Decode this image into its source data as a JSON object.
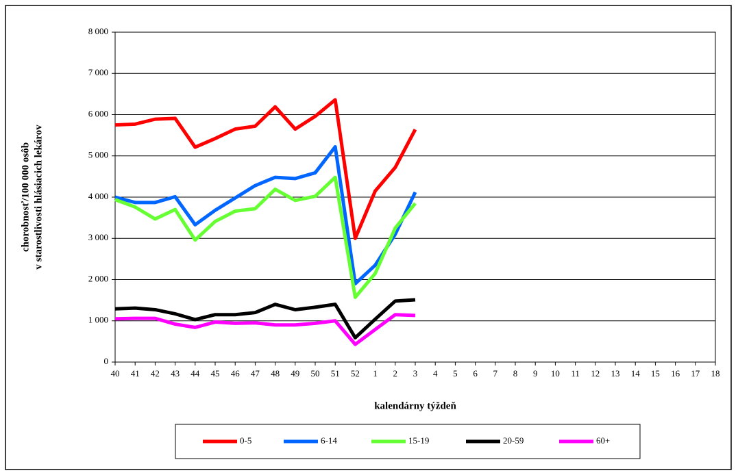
{
  "chart_data": {
    "type": "line",
    "xlabel": "kalendárny týždeň",
    "ylabel": [
      "chorobnosť/100 000 osôb",
      "v starostlivosti hlásiacich lekárov"
    ],
    "categories": [
      "40",
      "41",
      "42",
      "43",
      "44",
      "45",
      "46",
      "47",
      "48",
      "49",
      "50",
      "51",
      "52",
      "1",
      "2",
      "3",
      "4",
      "5",
      "6",
      "7",
      "8",
      "9",
      "10",
      "11",
      "12",
      "13",
      "14",
      "15",
      "16",
      "17",
      "18"
    ],
    "ylim": [
      0,
      8000
    ],
    "yticks": [
      0,
      {
        "value": 1000,
        "label": "1 000"
      },
      {
        "value": 2000,
        "label": "2 000"
      },
      {
        "value": 3000,
        "label": "3 000"
      },
      {
        "value": 4000,
        "label": "4 000"
      },
      {
        "value": 5000,
        "label": "5 000"
      },
      {
        "value": 6000,
        "label": "6 000"
      },
      {
        "value": 7000,
        "label": "7 000"
      },
      {
        "value": 8000,
        "label": "8 000"
      }
    ],
    "grid": true,
    "legend": "bottom",
    "series": [
      {
        "name": "0-5",
        "color": "#ff0000",
        "values": [
          5750,
          5770,
          5890,
          5910,
          5210,
          5420,
          5650,
          5720,
          6190,
          5650,
          5960,
          6360,
          3000,
          4150,
          4720,
          5640,
          null,
          null,
          null,
          null,
          null,
          null,
          null,
          null,
          null,
          null,
          null,
          null,
          null,
          null,
          null
        ]
      },
      {
        "name": "6-14",
        "color": "#0066ff",
        "values": [
          4000,
          3870,
          3870,
          4010,
          3330,
          3680,
          3980,
          4280,
          4480,
          4450,
          4590,
          5220,
          1900,
          2350,
          3100,
          4120,
          null,
          null,
          null,
          null,
          null,
          null,
          null,
          null,
          null,
          null,
          null,
          null,
          null,
          null,
          null
        ]
      },
      {
        "name": "15-19",
        "color": "#66ff33",
        "values": [
          3940,
          3760,
          3470,
          3700,
          2960,
          3410,
          3660,
          3720,
          4190,
          3920,
          4020,
          4480,
          1570,
          2150,
          3250,
          3850,
          null,
          null,
          null,
          null,
          null,
          null,
          null,
          null,
          null,
          null,
          null,
          null,
          null,
          null,
          null
        ]
      },
      {
        "name": "20-59",
        "color": "#000000",
        "values": [
          1290,
          1310,
          1270,
          1170,
          1030,
          1150,
          1150,
          1200,
          1400,
          1270,
          1330,
          1400,
          590,
          1040,
          1480,
          1510,
          null,
          null,
          null,
          null,
          null,
          null,
          null,
          null,
          null,
          null,
          null,
          null,
          null,
          null,
          null
        ]
      },
      {
        "name": "60+",
        "color": "#ff00ff",
        "values": [
          1050,
          1060,
          1060,
          920,
          840,
          970,
          940,
          950,
          900,
          900,
          940,
          1000,
          430,
          790,
          1150,
          1130,
          null,
          null,
          null,
          null,
          null,
          null,
          null,
          null,
          null,
          null,
          null,
          null,
          null,
          null,
          null
        ]
      }
    ]
  }
}
